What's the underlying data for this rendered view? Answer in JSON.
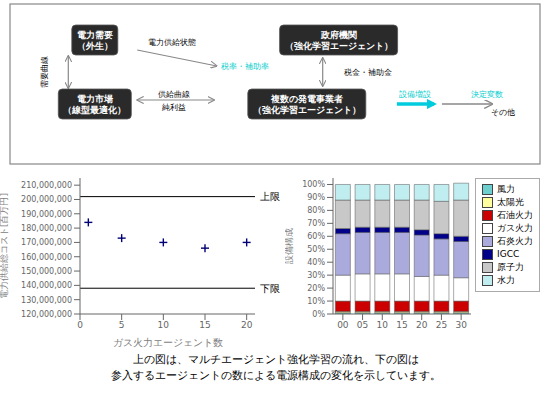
{
  "chart_data": [
    {
      "type": "scatter",
      "xlabel": "ガス火力エージェント数",
      "ylabel": "電力供給総コスト[百万円]",
      "x": [
        1,
        5,
        10,
        15,
        20
      ],
      "values": [
        184000000,
        173000000,
        170000000,
        166000000,
        170000000
      ],
      "color": "#000077",
      "marker": "plus",
      "xlim": [
        0,
        21
      ],
      "ylim": [
        120000000,
        215000000
      ],
      "xticks": [
        0,
        5,
        10,
        15,
        20
      ],
      "yticks": [
        {
          "value": 120000000,
          "label": "120,000,000"
        },
        {
          "value": 130000000,
          "label": "130,000,000"
        },
        {
          "value": 140000000,
          "label": "140,000,000"
        },
        {
          "value": 150000000,
          "label": "150,000,000"
        },
        {
          "value": 160000000,
          "label": "160,000,000"
        },
        {
          "value": 170000000,
          "label": "170,000,000"
        },
        {
          "value": 180000000,
          "label": "180,000,000"
        },
        {
          "value": 190000000,
          "label": "190,000,000"
        },
        {
          "value": 200000000,
          "label": "200,000,000"
        },
        {
          "value": 210000000,
          "label": "210,000,000"
        }
      ],
      "grid": false,
      "annotations": [
        {
          "text": "上限",
          "y": 202000000
        },
        {
          "text": "下限",
          "y": 138000000
        }
      ]
    },
    {
      "type": "bar",
      "stacked": true,
      "ylabel": "設備構成",
      "categories": [
        "00",
        "05",
        "10",
        "15",
        "20",
        "25",
        "30"
      ],
      "ylim": [
        0,
        105
      ],
      "yticks": [
        {
          "value": 0,
          "label": "0%"
        },
        {
          "value": 10,
          "label": "10%"
        },
        {
          "value": 20,
          "label": "20%"
        },
        {
          "value": 30,
          "label": "30%"
        },
        {
          "value": 40,
          "label": "40%"
        },
        {
          "value": 50,
          "label": "50%"
        },
        {
          "value": 60,
          "label": "60%"
        },
        {
          "value": 70,
          "label": "70%"
        },
        {
          "value": 80,
          "label": "80%"
        },
        {
          "value": 90,
          "label": "90%"
        },
        {
          "value": 100,
          "label": "100%"
        }
      ],
      "grid": false,
      "legend": "right",
      "series": [
        {
          "name": "風力",
          "color": "#6ecfcf",
          "values": [
            1,
            1,
            1,
            1,
            1,
            1,
            1
          ]
        },
        {
          "name": "太陽光",
          "color": "#ffffa0",
          "values": [
            1,
            1,
            1,
            1,
            1,
            1,
            1
          ]
        },
        {
          "name": "石油火力",
          "color": "#cc0000",
          "values": [
            8,
            8,
            8,
            8,
            8,
            8,
            8
          ]
        },
        {
          "name": "ガス火力",
          "color": "#ffffff",
          "values": [
            20,
            21,
            21,
            21,
            19,
            20,
            18
          ]
        },
        {
          "name": "石炎火力",
          "color": "#aaaadd",
          "values": [
            32,
            32,
            32,
            32,
            32,
            28,
            28
          ]
        },
        {
          "name": "IGCC",
          "color": "#000088",
          "values": [
            4,
            4,
            4,
            4,
            4,
            4,
            4
          ]
        },
        {
          "name": "原子力",
          "color": "#c8c8c8",
          "values": [
            22,
            21,
            21,
            21,
            23,
            25,
            28
          ]
        },
        {
          "name": "水力",
          "color": "#c0eef0",
          "values": [
            12,
            12,
            12,
            12,
            12,
            13,
            13
          ]
        }
      ]
    }
  ],
  "annotations": [
    {
      "text": "電力需要\n（外生）"
    },
    {
      "text": "政府機関\n（強化学習エージェント）"
    },
    {
      "text": "電力市場\n（線型最適化）"
    },
    {
      "text": "複数の発電事業者\n（強化学習エージェント）"
    },
    {
      "text": "需要曲線"
    },
    {
      "text": "電力供給状態"
    },
    {
      "text": "税率・補助率",
      "color": "#00cccc"
    },
    {
      "text": "税金・補助金"
    },
    {
      "text": "供給曲線"
    },
    {
      "text": "純利益"
    },
    {
      "text": "設備増設",
      "color": "#00cccc"
    },
    {
      "text": "決定変数",
      "color": "#00cccc"
    },
    {
      "text": "その他"
    },
    {
      "text": "上の図は、マルチエージェント強化学習の流れ、下の図は"
    },
    {
      "text": "参入するエージェントの数による電源構成の変化を示しています。"
    }
  ]
}
